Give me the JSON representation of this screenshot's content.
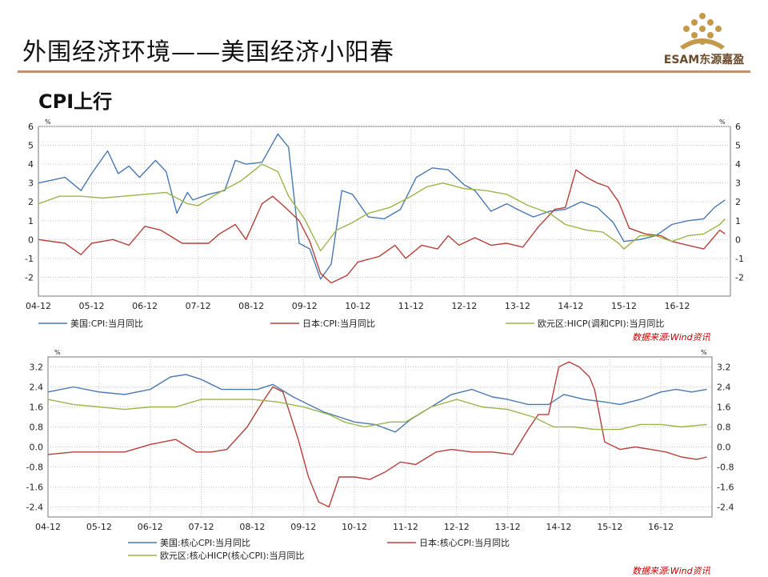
{
  "page": {
    "title": "外围经济环境——美国经济小阳春",
    "subtitle": "CPI上行",
    "logo_text": "ESAM东源嘉盈"
  },
  "colors": {
    "us": "#4a78b0",
    "jp": "#b5403a",
    "eu": "#9ab54a",
    "rule": "#c1906a",
    "source": "#c00000"
  },
  "chart_data": [
    {
      "type": "line",
      "unit_label": "%",
      "source": "数据来源:Wind资讯",
      "x_ticks": [
        "04-12",
        "05-12",
        "06-12",
        "07-12",
        "08-12",
        "09-12",
        "10-12",
        "11-12",
        "12-12",
        "13-12",
        "14-12",
        "15-12",
        "16-12"
      ],
      "ylim": [
        -3,
        6
      ],
      "y_ticks": [
        "-2",
        "-1",
        "0",
        "1",
        "2",
        "3",
        "4",
        "5",
        "6"
      ],
      "y_tick_values": [
        -2,
        -1,
        0,
        1,
        2,
        3,
        4,
        5,
        6
      ],
      "series": [
        {
          "name": "美国:CPI:当月同比",
          "color": "#4a78b0",
          "x": [
            2004.0,
            2004.5,
            2004.8,
            2005.0,
            2005.3,
            2005.5,
            2005.7,
            2005.9,
            2006.2,
            2006.4,
            2006.6,
            2006.8,
            2006.9,
            2007.2,
            2007.5,
            2007.7,
            2007.9,
            2008.2,
            2008.5,
            2008.7,
            2008.9,
            2009.1,
            2009.3,
            2009.5,
            2009.7,
            2009.9,
            2010.2,
            2010.5,
            2010.8,
            2011.1,
            2011.4,
            2011.7,
            2012.0,
            2012.2,
            2012.5,
            2012.8,
            2013.0,
            2013.3,
            2013.6,
            2013.9,
            2014.2,
            2014.5,
            2014.8,
            2015.0,
            2015.3,
            2015.6,
            2015.9,
            2016.2,
            2016.5,
            2016.7,
            2016.9
          ],
          "values": [
            3.0,
            3.3,
            2.6,
            3.5,
            4.7,
            3.5,
            3.9,
            3.3,
            4.2,
            3.6,
            1.4,
            2.5,
            2.1,
            2.4,
            2.6,
            4.2,
            4.0,
            4.1,
            5.6,
            4.9,
            -0.2,
            -0.5,
            -2.1,
            -1.3,
            2.6,
            2.4,
            1.2,
            1.1,
            1.6,
            3.3,
            3.8,
            3.7,
            2.9,
            2.6,
            1.5,
            1.9,
            1.6,
            1.2,
            1.5,
            1.6,
            2.0,
            1.7,
            0.9,
            -0.1,
            0.0,
            0.2,
            0.8,
            1.0,
            1.1,
            1.7,
            2.1
          ]
        },
        {
          "name": "日本:CPI:当月同比",
          "color": "#b5403a",
          "x": [
            2004.0,
            2004.5,
            2004.8,
            2005.0,
            2005.4,
            2005.7,
            2006.0,
            2006.3,
            2006.7,
            2006.9,
            2007.2,
            2007.4,
            2007.7,
            2007.9,
            2008.2,
            2008.4,
            2008.6,
            2008.9,
            2009.1,
            2009.3,
            2009.5,
            2009.8,
            2010.0,
            2010.4,
            2010.7,
            2010.9,
            2011.2,
            2011.5,
            2011.7,
            2011.9,
            2012.2,
            2012.5,
            2012.8,
            2013.1,
            2013.4,
            2013.7,
            2013.9,
            2014.1,
            2014.3,
            2014.5,
            2014.7,
            2014.9,
            2015.1,
            2015.4,
            2015.7,
            2015.9,
            2016.2,
            2016.5,
            2016.8,
            2016.9
          ],
          "values": [
            0.0,
            -0.2,
            -0.8,
            -0.2,
            0.0,
            -0.3,
            0.7,
            0.5,
            -0.2,
            -0.2,
            -0.2,
            0.3,
            0.8,
            0.0,
            1.9,
            2.3,
            1.8,
            1.0,
            -0.1,
            -1.8,
            -2.3,
            -1.9,
            -1.2,
            -0.9,
            -0.3,
            -1.0,
            -0.3,
            -0.5,
            0.2,
            -0.3,
            0.1,
            -0.3,
            -0.2,
            -0.4,
            0.7,
            1.6,
            1.7,
            3.7,
            3.3,
            3.0,
            2.8,
            2.0,
            0.6,
            0.3,
            0.2,
            -0.1,
            -0.3,
            -0.5,
            0.5,
            0.3
          ]
        },
        {
          "name": "欧元区:HICP(调和CPI):当月同比",
          "color": "#9ab54a",
          "x": [
            2004.0,
            2004.4,
            2004.8,
            2005.2,
            2005.6,
            2006.0,
            2006.4,
            2006.8,
            2007.0,
            2007.4,
            2007.8,
            2008.2,
            2008.5,
            2008.7,
            2009.0,
            2009.3,
            2009.6,
            2009.9,
            2010.2,
            2010.6,
            2011.0,
            2011.3,
            2011.6,
            2012.0,
            2012.4,
            2012.8,
            2013.2,
            2013.6,
            2013.9,
            2014.3,
            2014.6,
            2014.9,
            2015.0,
            2015.3,
            2015.6,
            2015.9,
            2016.2,
            2016.5,
            2016.8,
            2016.9
          ],
          "values": [
            1.9,
            2.3,
            2.3,
            2.2,
            2.3,
            2.4,
            2.5,
            1.9,
            1.8,
            2.5,
            3.1,
            4.0,
            3.6,
            2.3,
            1.1,
            -0.6,
            0.5,
            0.9,
            1.4,
            1.7,
            2.3,
            2.8,
            3.0,
            2.7,
            2.6,
            2.4,
            1.8,
            1.4,
            0.8,
            0.5,
            0.4,
            -0.2,
            -0.5,
            0.2,
            0.2,
            -0.1,
            0.2,
            0.3,
            0.8,
            1.1
          ]
        }
      ]
    },
    {
      "type": "line",
      "unit_label": "%",
      "source": "数据来源:Wind资讯",
      "x_ticks": [
        "04-12",
        "05-12",
        "06-12",
        "07-12",
        "08-12",
        "09-12",
        "10-12",
        "11-12",
        "12-12",
        "13-12",
        "14-12",
        "15-12",
        "16-12"
      ],
      "ylim": [
        -2.8,
        3.6
      ],
      "y_ticks": [
        "-2.4",
        "-1.6",
        "-0.8",
        "0.0",
        "0.8",
        "1.6",
        "2.4",
        "3.2"
      ],
      "y_tick_values": [
        -2.4,
        -1.6,
        -0.8,
        0.0,
        0.8,
        1.6,
        2.4,
        3.2
      ],
      "series": [
        {
          "name": "美国:核心CPI:当月同比",
          "color": "#4a78b0",
          "x": [
            2004.0,
            2004.5,
            2005.0,
            2005.5,
            2006.0,
            2006.4,
            2006.7,
            2007.0,
            2007.4,
            2007.8,
            2008.1,
            2008.4,
            2008.8,
            2009.1,
            2009.4,
            2009.7,
            2010.0,
            2010.4,
            2010.8,
            2011.1,
            2011.5,
            2011.9,
            2012.3,
            2012.7,
            2013.0,
            2013.4,
            2013.8,
            2014.1,
            2014.5,
            2014.9,
            2015.2,
            2015.6,
            2016.0,
            2016.3,
            2016.6,
            2016.9
          ],
          "values": [
            2.2,
            2.4,
            2.2,
            2.1,
            2.3,
            2.8,
            2.9,
            2.7,
            2.3,
            2.3,
            2.3,
            2.5,
            2.0,
            1.7,
            1.4,
            1.2,
            1.0,
            0.9,
            0.6,
            1.1,
            1.6,
            2.1,
            2.3,
            2.0,
            1.9,
            1.7,
            1.7,
            2.1,
            1.9,
            1.8,
            1.7,
            1.9,
            2.2,
            2.3,
            2.2,
            2.3
          ]
        },
        {
          "name": "日本:核心CPI:当月同比",
          "color": "#b5403a",
          "x": [
            2004.0,
            2004.5,
            2005.0,
            2005.5,
            2006.0,
            2006.5,
            2006.9,
            2007.2,
            2007.5,
            2007.9,
            2008.2,
            2008.4,
            2008.6,
            2008.9,
            2009.1,
            2009.3,
            2009.5,
            2009.7,
            2010.0,
            2010.3,
            2010.6,
            2010.9,
            2011.2,
            2011.6,
            2011.9,
            2012.3,
            2012.7,
            2013.1,
            2013.4,
            2013.6,
            2013.8,
            2014.0,
            2014.2,
            2014.4,
            2014.6,
            2014.7,
            2014.9,
            2015.2,
            2015.5,
            2015.8,
            2016.1,
            2016.4,
            2016.7,
            2016.9
          ],
          "values": [
            -0.3,
            -0.2,
            -0.2,
            -0.2,
            0.1,
            0.3,
            -0.2,
            -0.2,
            -0.1,
            0.8,
            1.8,
            2.4,
            2.2,
            0.3,
            -1.2,
            -2.2,
            -2.4,
            -1.2,
            -1.2,
            -1.3,
            -1.0,
            -0.6,
            -0.7,
            -0.2,
            -0.1,
            -0.2,
            -0.2,
            -0.3,
            0.7,
            1.3,
            1.3,
            3.2,
            3.4,
            3.2,
            2.8,
            2.3,
            0.2,
            -0.1,
            0.0,
            -0.1,
            -0.2,
            -0.4,
            -0.5,
            -0.4
          ]
        },
        {
          "name": "欧元区:核心HICP(核心CPI):当月同比",
          "color": "#9ab54a",
          "x": [
            2004.0,
            2004.5,
            2005.0,
            2005.5,
            2006.0,
            2006.5,
            2007.0,
            2007.5,
            2008.0,
            2008.5,
            2009.0,
            2009.5,
            2009.8,
            2010.2,
            2010.7,
            2011.0,
            2011.5,
            2012.0,
            2012.5,
            2013.0,
            2013.5,
            2013.9,
            2014.3,
            2014.7,
            2014.9,
            2015.2,
            2015.6,
            2016.0,
            2016.4,
            2016.9
          ],
          "values": [
            1.9,
            1.7,
            1.6,
            1.5,
            1.6,
            1.6,
            1.9,
            1.9,
            1.9,
            1.8,
            1.6,
            1.3,
            1.0,
            0.8,
            1.0,
            1.0,
            1.6,
            1.9,
            1.6,
            1.5,
            1.2,
            0.8,
            0.8,
            0.7,
            0.7,
            0.7,
            0.9,
            0.9,
            0.8,
            0.9
          ]
        }
      ]
    }
  ]
}
